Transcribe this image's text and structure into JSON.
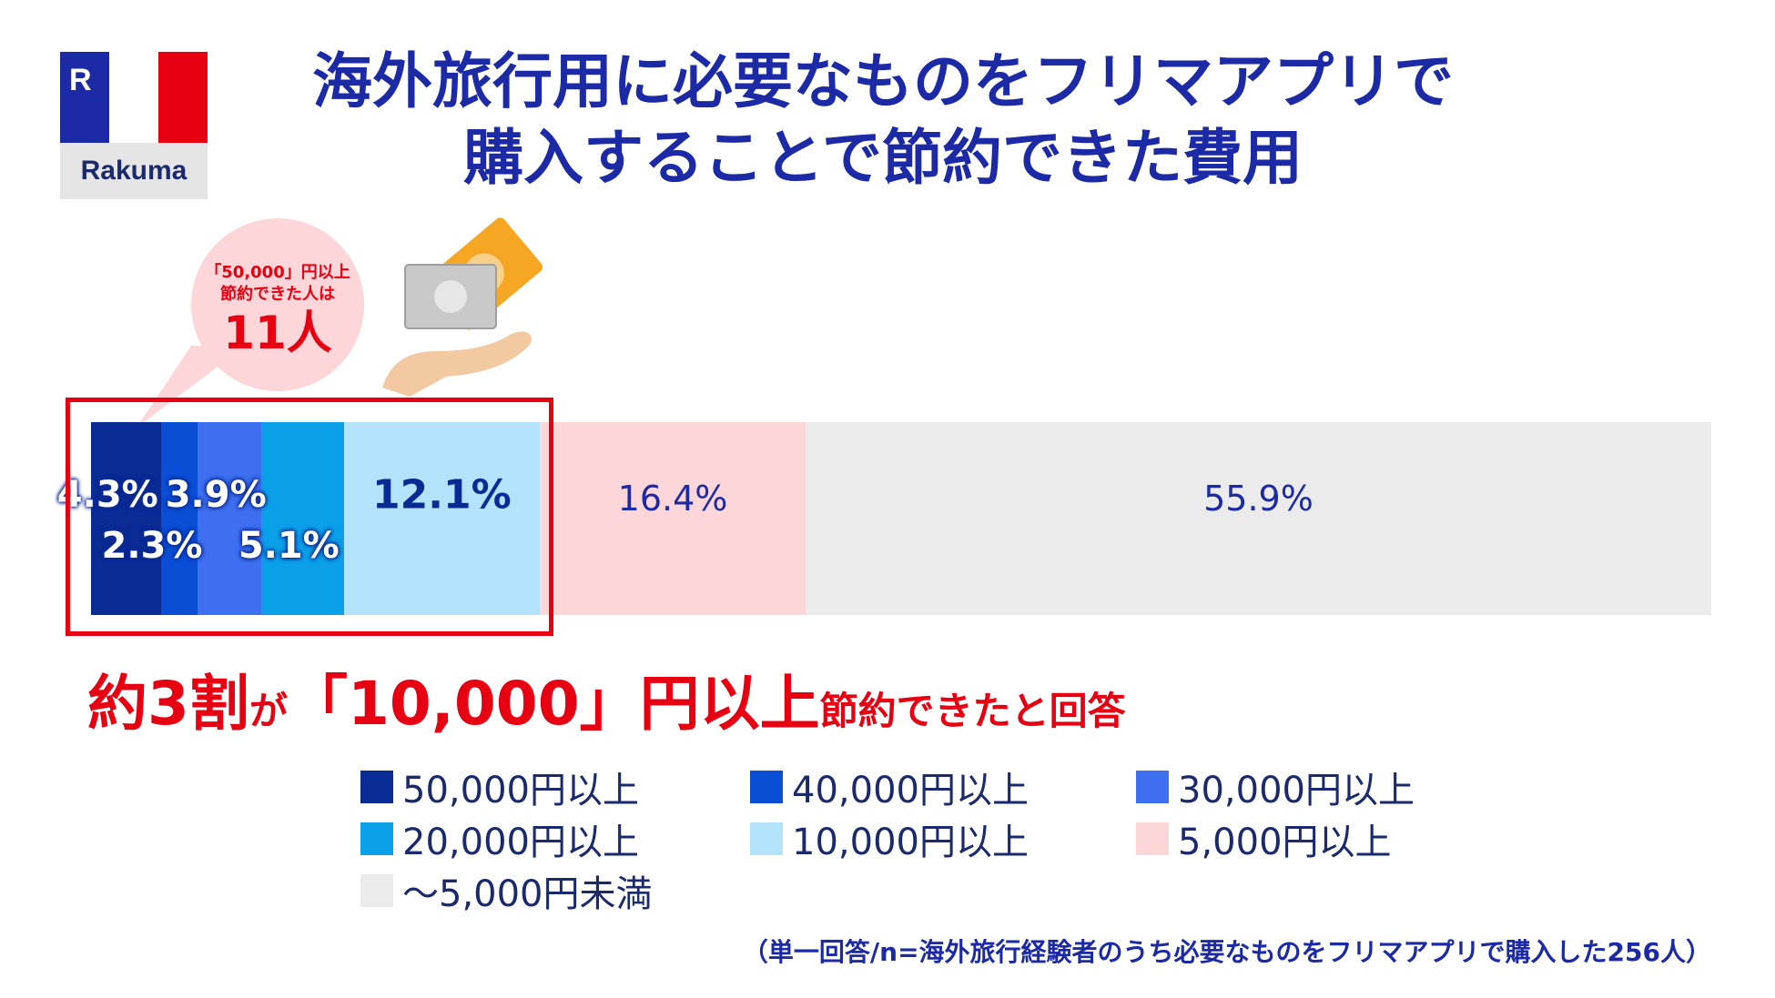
{
  "logo": {
    "text": "Rakuma",
    "mark": "R"
  },
  "title": "海外旅行用に必要なものをフリマアプリで\n購入することで節約できた費用",
  "bubble": {
    "line1": "「50,000」円以上",
    "line2": "節約できた人は",
    "count": "11人"
  },
  "headline": {
    "part1": "約3割",
    "part2": "が",
    "part3": "「10,000」円以上",
    "part4": "節約できたと回答"
  },
  "note": "（単一回答/n=海外旅行経験者のうち必要なものをフリマアプリで購入した256人）",
  "colors": {
    "title": "#1d2aa6",
    "accent_red": "#e60012",
    "bubble_bg": "#fcd6d8"
  },
  "chart_data": {
    "type": "bar",
    "orientation": "horizontal-stacked-100",
    "series": [
      {
        "name": "50,000円以上",
        "value": 4.3,
        "label": "4.3%",
        "color": "#0a2b94"
      },
      {
        "name": "40,000円以上",
        "value": 2.3,
        "label": "2.3%",
        "color": "#0a4ed6"
      },
      {
        "name": "30,000円以上",
        "value": 3.9,
        "label": "3.9%",
        "color": "#3e6ff0"
      },
      {
        "name": "20,000円以上",
        "value": 5.1,
        "label": "5.1%",
        "color": "#0ba0e8"
      },
      {
        "name": "10,000円以上",
        "value": 12.1,
        "label": "12.1%",
        "color": "#b3e3fb"
      },
      {
        "name": "5,000円以上",
        "value": 16.4,
        "label": "16.4%",
        "color": "#fcd6d8"
      },
      {
        "name": "～5,000円未満",
        "value": 55.9,
        "label": "55.9%",
        "color": "#ebebeb"
      }
    ],
    "legend_position": "bottom"
  }
}
